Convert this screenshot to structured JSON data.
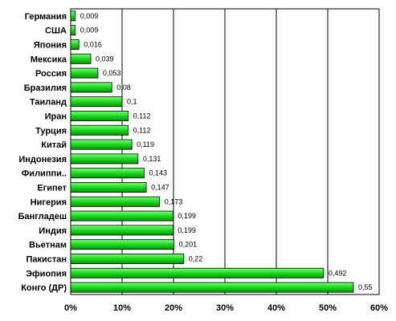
{
  "chart_data": {
    "type": "bar",
    "orientation": "horizontal",
    "categories": [
      "Германия",
      "США",
      "Япония",
      "Мексика",
      "Россия",
      "Бразилия",
      "Таиланд",
      "Иран",
      "Турция",
      "Китай",
      "Индонезия",
      "Филиппи..",
      "Египет",
      "Нигерия",
      "Бангладеш",
      "Индия",
      "Вьетнам",
      "Пакистан",
      "Эфиопия",
      "Конго (ДР)"
    ],
    "values": [
      0.009,
      0.009,
      0.016,
      0.039,
      0.053,
      0.08,
      0.1,
      0.112,
      0.112,
      0.119,
      0.131,
      0.143,
      0.147,
      0.173,
      0.199,
      0.199,
      0.201,
      0.22,
      0.492,
      0.55
    ],
    "value_labels": [
      "0,009",
      "0,009",
      "0,016",
      "0,039",
      "0,053",
      "0,08",
      "0,1",
      "0,112",
      "0,112",
      "0,119",
      "0,131",
      "0,143",
      "0,147",
      "0,173",
      "0,199",
      "0,199",
      "0,201",
      "0,22",
      "0,492",
      "0,55"
    ],
    "xlim": [
      0,
      0.6
    ],
    "xticks": [
      0,
      0.1,
      0.2,
      0.3,
      0.4,
      0.5,
      0.6
    ],
    "xtick_labels": [
      "0%",
      "10%",
      "20%",
      "30%",
      "40%",
      "50%",
      "60%"
    ],
    "grid": "vertical",
    "legend": "none",
    "bar_color": "#22cc22",
    "bar_edge_color": "#000000",
    "title": "",
    "xlabel": "",
    "ylabel": ""
  }
}
